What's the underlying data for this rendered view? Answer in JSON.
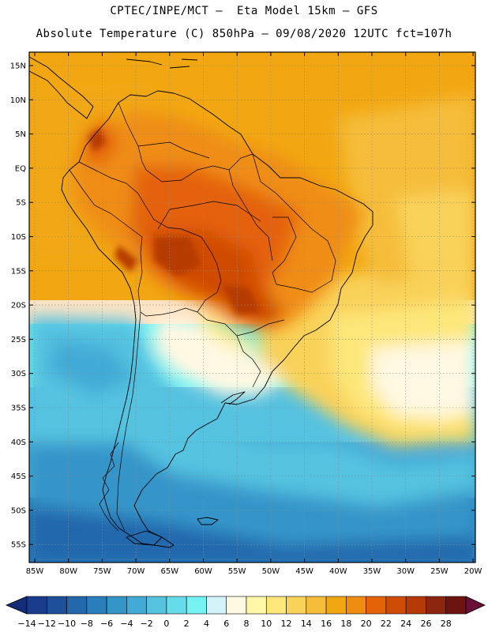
{
  "title_line1": "CPTEC/INPE/MCT –  Eta Model 15km – GFS",
  "title_line2": "Absolute Temperature (C) 850hPa – 09/08/2020 12UTC fct=107h",
  "lat_labels": [
    "15N",
    "10N",
    "5N",
    "EQ",
    "5S",
    "10S",
    "15S",
    "20S",
    "25S",
    "30S",
    "35S",
    "40S",
    "45S",
    "50S",
    "55S"
  ],
  "lon_labels": [
    "85W",
    "80W",
    "75W",
    "70W",
    "65W",
    "60W",
    "55W",
    "50W",
    "45W",
    "40W",
    "35W",
    "30W",
    "25W",
    "20W"
  ],
  "colorbar": {
    "labels": [
      "-14",
      "-12",
      "-10",
      "-8",
      "-6",
      "-4",
      "-2",
      "0",
      "2",
      "4",
      "6",
      "8",
      "10",
      "12",
      "14",
      "16",
      "18",
      "20",
      "22",
      "24",
      "26",
      "28"
    ],
    "colors": [
      "#1b3c8c",
      "#1d4f9a",
      "#2468ac",
      "#2a7ebb",
      "#3495c9",
      "#43aad6",
      "#55c2e0",
      "#66dbe9",
      "#74f3f2",
      "#d4f2fa",
      "#fff8e2",
      "#fff7a8",
      "#fde77a",
      "#f9d25a",
      "#f5bd3a",
      "#f1a712",
      "#ef8d12",
      "#e46208",
      "#cf4c05",
      "#b53a06",
      "#8c250d",
      "#6e1410"
    ],
    "low_color": "#142c78",
    "high_color": "#6a0f38"
  }
}
